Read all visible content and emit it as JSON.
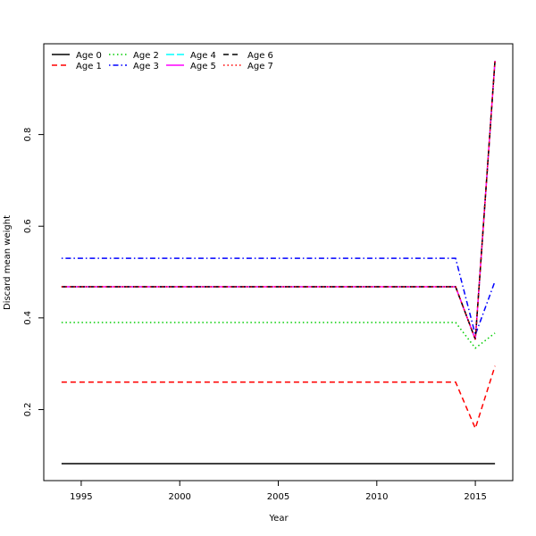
{
  "chart_data": {
    "type": "line",
    "title": "",
    "xlabel": "Year",
    "ylabel": "Discard mean weight",
    "x": [
      1994,
      1995,
      1996,
      1997,
      1998,
      1999,
      2000,
      2001,
      2002,
      2003,
      2004,
      2005,
      2006,
      2007,
      2008,
      2009,
      2010,
      2011,
      2012,
      2013,
      2014,
      2015,
      2016
    ],
    "xlim": [
      1993.1,
      2016.9
    ],
    "ylim": [
      0.045,
      0.998
    ],
    "xticks": [
      1995,
      2000,
      2005,
      2010,
      2015
    ],
    "yticks": [
      0.2,
      0.4,
      0.6,
      0.8
    ],
    "ytick_labels": [
      "0.2",
      "0.4",
      "0.6",
      "0.8"
    ],
    "grid": false,
    "legend_placement": "top-left",
    "series": [
      {
        "name": "Age 0",
        "color": "#000000",
        "dash": "solid",
        "base": 0.082,
        "y2015": 0.082,
        "y2016": 0.082
      },
      {
        "name": "Age 1",
        "color": "#FF0000",
        "dash": "dashed",
        "base": 0.26,
        "y2015": 0.159,
        "y2016": 0.295
      },
      {
        "name": "Age 2",
        "color": "#00CD00",
        "dash": "dotted",
        "base": 0.39,
        "y2015": 0.334,
        "y2016": 0.367
      },
      {
        "name": "Age 3",
        "color": "#0000FF",
        "dash": "dotdash",
        "base": 0.53,
        "y2015": 0.363,
        "y2016": 0.48
      },
      {
        "name": "Age 4",
        "color": "#00FFFF",
        "dash": "longdash",
        "base": 0.468,
        "y2015": 0.353,
        "y2016": 0.961
      },
      {
        "name": "Age 5",
        "color": "#FF00FF",
        "dash": "solid",
        "base": 0.468,
        "y2015": 0.353,
        "y2016": 0.961
      },
      {
        "name": "Age 6",
        "color": "#000000",
        "dash": "dashed",
        "base": 0.468,
        "y2015": 0.353,
        "y2016": 0.961
      },
      {
        "name": "Age 7",
        "color": "#FF0000",
        "dash": "dotted",
        "base": 0.468,
        "y2015": 0.353,
        "y2016": 0.961
      }
    ]
  }
}
